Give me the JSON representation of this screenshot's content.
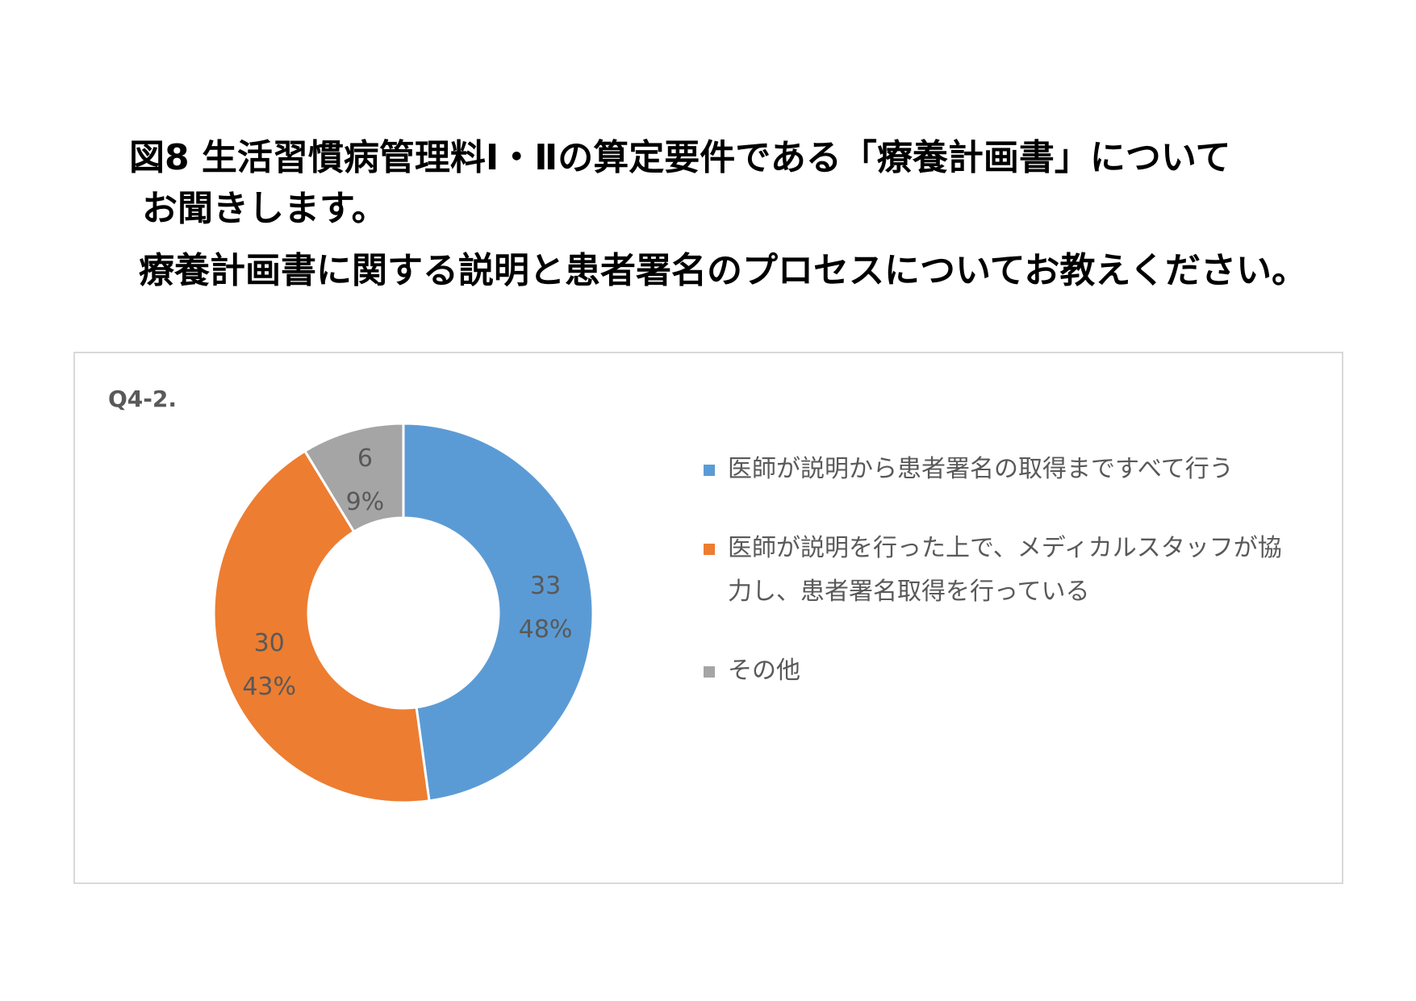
{
  "title": {
    "line1": "図8  生活習慣病管理料Ⅰ・Ⅱの算定要件である「療養計画書」について",
    "line2": "お聞きします。",
    "line3": "療養計画書に関する説明と患者署名のプロセスについてお教えください。"
  },
  "chart_label": "Q4-2.",
  "chart_data": {
    "type": "pie",
    "donut": true,
    "categories": [
      "医師が説明から患者署名の取得まですべて行う",
      "医師が説明を行った上で、メディカルスタッフが協力し、患者署名取得を行っている",
      "その他"
    ],
    "values": [
      33,
      30,
      6
    ],
    "percent_labels": [
      "48%",
      "43%",
      "9%"
    ],
    "colors": [
      "#5b9bd5",
      "#ed7d31",
      "#a5a5a5"
    ],
    "legend_position": "right"
  }
}
